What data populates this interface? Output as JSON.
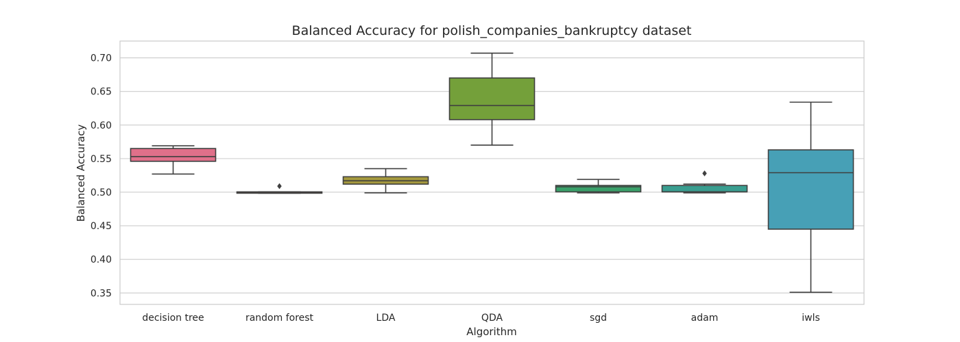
{
  "chart_data": {
    "type": "boxplot",
    "title": "Balanced Accuracy for polish_companies_bankruptcy dataset",
    "xlabel": "Algorithm",
    "ylabel": "Balanced Accuracy",
    "ylim": [
      0.333,
      0.725
    ],
    "yticks": [
      0.35,
      0.4,
      0.45,
      0.5,
      0.55,
      0.6,
      0.65,
      0.7
    ],
    "ytick_labels": [
      "0.35",
      "0.40",
      "0.45",
      "0.50",
      "0.55",
      "0.60",
      "0.65",
      "0.70"
    ],
    "grid": true,
    "categories": [
      "decision tree",
      "random forest",
      "LDA",
      "QDA",
      "sgd",
      "adam",
      "iwls"
    ],
    "boxes": [
      {
        "label": "decision tree",
        "color": "#e0708a",
        "whisker_low": 0.527,
        "q1": 0.546,
        "median": 0.553,
        "q3": 0.565,
        "whisker_high": 0.569,
        "outliers": []
      },
      {
        "label": "random forest",
        "color": "#c98c4e",
        "whisker_low": 0.4985,
        "q1": 0.4985,
        "median": 0.499,
        "q3": 0.5005,
        "whisker_high": 0.5005,
        "outliers": [
          0.509
        ]
      },
      {
        "label": "LDA",
        "color": "#a69a3e",
        "whisker_low": 0.499,
        "q1": 0.512,
        "median": 0.517,
        "q3": 0.523,
        "whisker_high": 0.535,
        "outliers": []
      },
      {
        "label": "QDA",
        "color": "#74a03a",
        "whisker_low": 0.57,
        "q1": 0.608,
        "median": 0.629,
        "q3": 0.67,
        "whisker_high": 0.707,
        "outliers": []
      },
      {
        "label": "sgd",
        "color": "#3aa06a",
        "whisker_low": 0.499,
        "q1": 0.5005,
        "median": 0.508,
        "q3": 0.51,
        "whisker_high": 0.519,
        "outliers": []
      },
      {
        "label": "adam",
        "color": "#3a9e90",
        "whisker_low": 0.499,
        "q1": 0.5005,
        "median": 0.5005,
        "q3": 0.51,
        "whisker_high": 0.512,
        "outliers": [
          0.528
        ]
      },
      {
        "label": "iwls",
        "color": "#47a0b6",
        "whisker_low": 0.351,
        "q1": 0.445,
        "median": 0.529,
        "q3": 0.563,
        "whisker_high": 0.634,
        "outliers": []
      }
    ]
  }
}
